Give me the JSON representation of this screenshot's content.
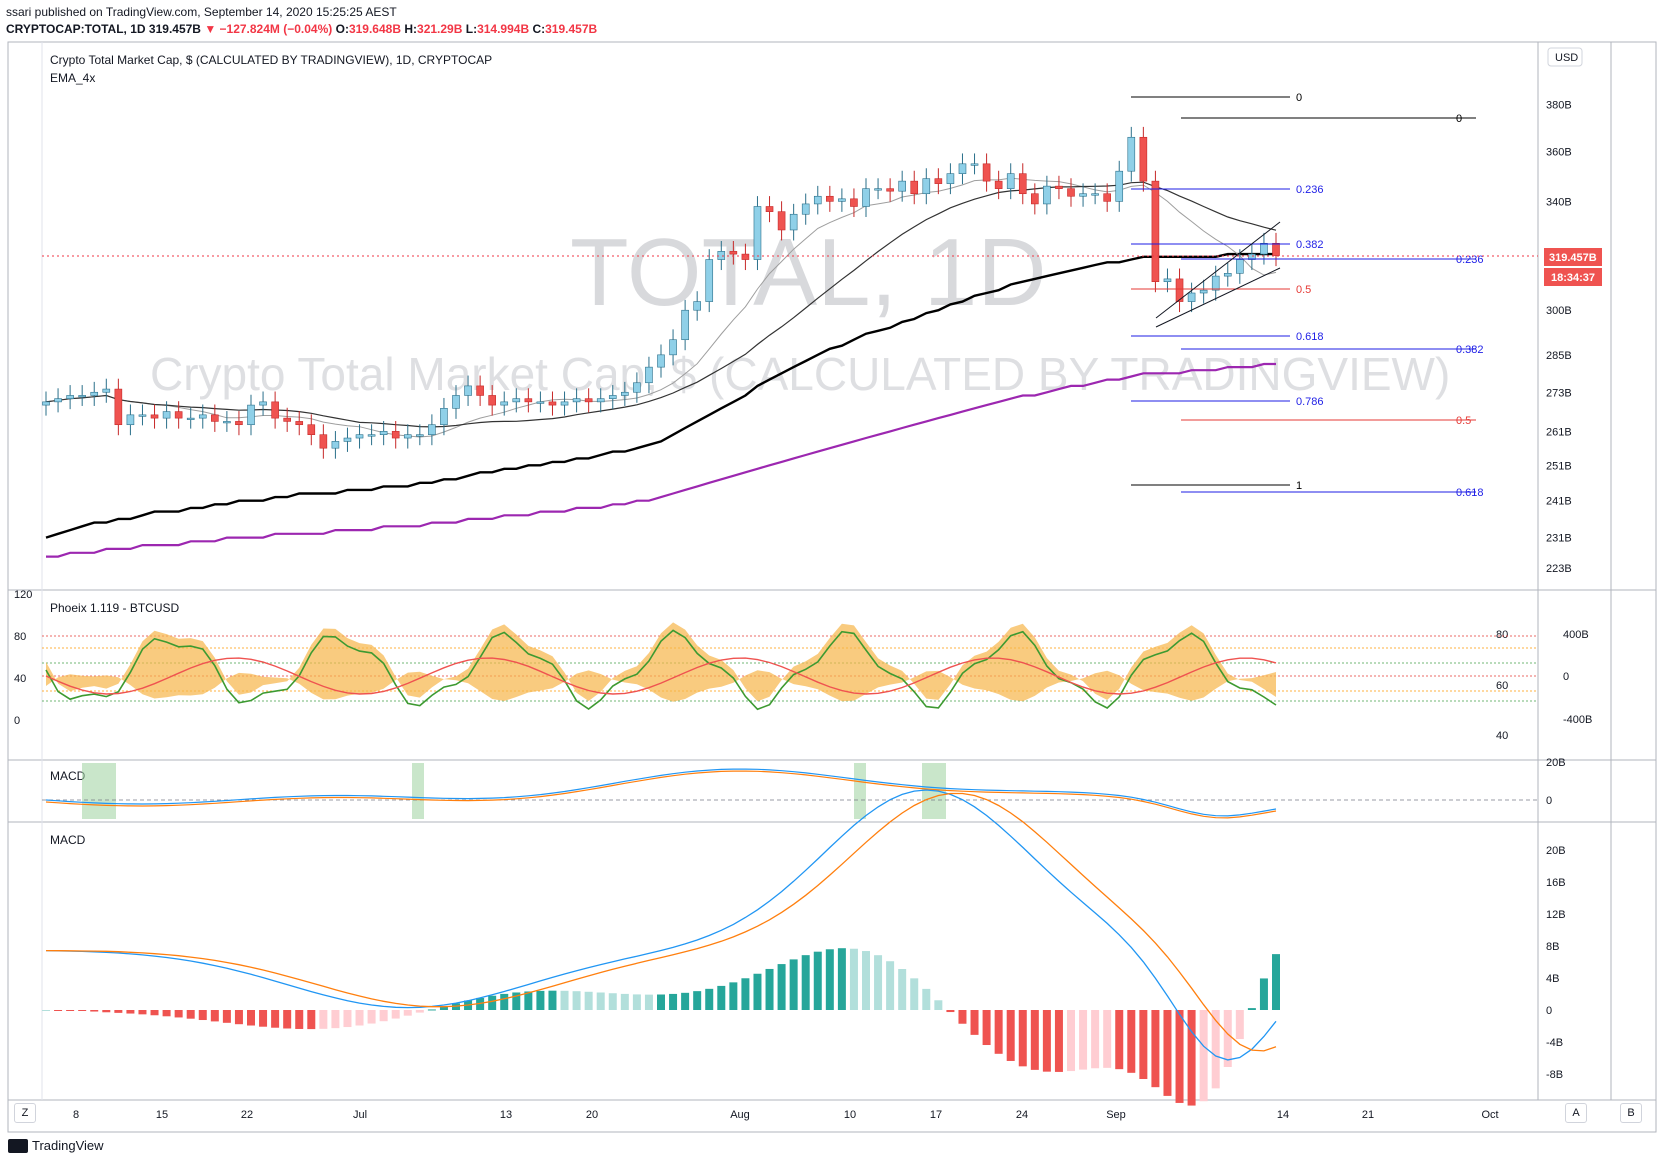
{
  "header": {
    "published": "ssari published on TradingView.com, September 14, 2020 15:25:25 AEST",
    "symbol": "CRYPTOCAP:TOTAL, 1D",
    "last": "319.457B",
    "change": "▼ −127.824M (−0.04%)",
    "o_label": "O:",
    "o_val": "319.648B",
    "h_label": "H:",
    "h_val": "321.29B",
    "l_label": "L:",
    "l_val": "314.994B",
    "c_label": "C:",
    "c_val": "319.457B"
  },
  "main_pane": {
    "legend_title": "Crypto Total Market Cap, $ (CALCULATED BY TRADINGVIEW), 1D, CRYPTOCAP",
    "legend_indicator": "EMA_4x",
    "watermark_big": "TOTAL, 1D",
    "watermark_small": "Crypto Total Market Cap, $ (CALCULATED BY TRADINGVIEW)",
    "currency": "USD",
    "price_badge": "319.457B",
    "time_badge": "18:34:37",
    "y_ticks": [
      "380B",
      "360B",
      "340B",
      "320B",
      "300B",
      "285B",
      "273B",
      "261B",
      "251B",
      "241B",
      "231B",
      "223B"
    ]
  },
  "fib_a": {
    "levels": [
      "0",
      "0.236",
      "0.382",
      "0.5",
      "0.618",
      "0.786",
      "1"
    ]
  },
  "fib_b": {
    "levels": [
      "0",
      "0.236",
      "0.382",
      "0.5",
      "0.618"
    ]
  },
  "phoenix_pane": {
    "legend": "Phoeix 1.119 - BTCUSD",
    "left_ticks": [
      "120",
      "80",
      "40",
      "0"
    ],
    "right_ticks_a": [
      "80",
      "60",
      "40"
    ],
    "right_ticks_b": [
      "400B",
      "0",
      "-400B"
    ]
  },
  "macd_pane_1": {
    "legend": "MACD",
    "right_ticks": [
      "20B",
      "0"
    ]
  },
  "macd_pane_2": {
    "legend": "MACD",
    "right_ticks": [
      "20B",
      "16B",
      "12B",
      "8B",
      "4B",
      "0",
      "-4B",
      "-8B"
    ]
  },
  "x_axis": {
    "labels": [
      "8",
      "15",
      "22",
      "Jul",
      "13",
      "20",
      "Aug",
      "10",
      "17",
      "24",
      "Sep",
      "14",
      "21",
      "Oct"
    ]
  },
  "buttons": {
    "z": "Z",
    "a": "A",
    "b": "B"
  },
  "footer": {
    "brand": "TradingView"
  },
  "colors": {
    "up": "#8fd0e8",
    "down": "#ef5350",
    "ema_black": "#000000",
    "ema_purple": "#9c27b0",
    "macd_blue": "#2196f3",
    "signal_orange": "#ff7f0e"
  },
  "chart_data": {
    "type": "candlestick",
    "title": "Crypto Total Market Cap, $ (CALCULATED BY TRADINGVIEW), 1D, CRYPTOCAP",
    "dates": [
      "Jun 4",
      "Jun 5",
      "Jun 6",
      "Jun 7",
      "Jun 8",
      "Jun 9",
      "Jun 10",
      "Jun 11",
      "Jun 12",
      "Jun 13",
      "Jun 14",
      "Jun 15",
      "Jun 16",
      "Jun 17",
      "Jun 18",
      "Jun 19",
      "Jun 20",
      "Jun 21",
      "Jun 22",
      "Jun 23",
      "Jun 24",
      "Jun 25",
      "Jun 26",
      "Jun 27",
      "Jun 28",
      "Jun 29",
      "Jun 30",
      "Jul 1",
      "Jul 2",
      "Jul 3",
      "Jul 4",
      "Jul 5",
      "Jul 6",
      "Jul 7",
      "Jul 8",
      "Jul 9",
      "Jul 10",
      "Jul 11",
      "Jul 12",
      "Jul 13",
      "Jul 14",
      "Jul 15",
      "Jul 16",
      "Jul 17",
      "Jul 18",
      "Jul 19",
      "Jul 20",
      "Jul 21",
      "Jul 22",
      "Jul 23",
      "Jul 24",
      "Jul 25",
      "Jul 26",
      "Jul 27",
      "Jul 28",
      "Jul 29",
      "Jul 30",
      "Jul 31",
      "Aug 1",
      "Aug 2",
      "Aug 3",
      "Aug 4",
      "Aug 5",
      "Aug 6",
      "Aug 7",
      "Aug 8",
      "Aug 9",
      "Aug 10",
      "Aug 11",
      "Aug 12",
      "Aug 13",
      "Aug 14",
      "Aug 15",
      "Aug 16",
      "Aug 17",
      "Aug 18",
      "Aug 19",
      "Aug 20",
      "Aug 21",
      "Aug 22",
      "Aug 23",
      "Aug 24",
      "Aug 25",
      "Aug 26",
      "Aug 27",
      "Aug 28",
      "Aug 29",
      "Aug 30",
      "Aug 31",
      "Sep 1",
      "Sep 2",
      "Sep 3",
      "Sep 4",
      "Sep 5",
      "Sep 6",
      "Sep 7",
      "Sep 8",
      "Sep 9",
      "Sep 10",
      "Sep 11",
      "Sep 12",
      "Sep 13",
      "Sep 14"
    ],
    "close": [
      270,
      271,
      272,
      272,
      273,
      274,
      263,
      266,
      266,
      265,
      267,
      265,
      265,
      266,
      264,
      264,
      263,
      269,
      270,
      265,
      264,
      263,
      260,
      256,
      258,
      259,
      260,
      260,
      261,
      259,
      260,
      260,
      263,
      268,
      272,
      275,
      272,
      269,
      270,
      271,
      270,
      270,
      269,
      270,
      271,
      270,
      271,
      272,
      273,
      276,
      281,
      285,
      290,
      300,
      303,
      318,
      321,
      320,
      318,
      338,
      336,
      329,
      335,
      339,
      342,
      340,
      341,
      338,
      345,
      345,
      344,
      348,
      343,
      349,
      347,
      351,
      355,
      355,
      348,
      345,
      351,
      343,
      339,
      346,
      345,
      342,
      343,
      343,
      340,
      352,
      366,
      348,
      310,
      311,
      303,
      306,
      307,
      312,
      313,
      318,
      320,
      324,
      319.457
    ],
    "ema_black": [
      231,
      232,
      233,
      234,
      235,
      235,
      236,
      236,
      237,
      238,
      238,
      238,
      239,
      239,
      240,
      240,
      241,
      241,
      241,
      242,
      242,
      243,
      243,
      243,
      243,
      244,
      244,
      244,
      245,
      245,
      245,
      246,
      246,
      247,
      247,
      248,
      249,
      249,
      250,
      250,
      251,
      251,
      252,
      252,
      253,
      253,
      254,
      255,
      255,
      256,
      257,
      258,
      260,
      262,
      264,
      266,
      268,
      270,
      272,
      275,
      277,
      279,
      281,
      283,
      285,
      287,
      288,
      290,
      292,
      293,
      294,
      296,
      297,
      299,
      300,
      302,
      303,
      305,
      306,
      307,
      309,
      310,
      311,
      312,
      313,
      314,
      315,
      316,
      317,
      317,
      318,
      319,
      319,
      319,
      319,
      319,
      319,
      319,
      320,
      320,
      320,
      320,
      320
    ],
    "ema_purple": [
      226,
      226,
      227,
      227,
      227,
      228,
      228,
      228,
      229,
      229,
      229,
      229,
      230,
      230,
      230,
      231,
      231,
      231,
      231,
      232,
      232,
      232,
      232,
      232,
      233,
      233,
      233,
      233,
      234,
      234,
      234,
      234,
      235,
      235,
      235,
      236,
      236,
      236,
      237,
      237,
      237,
      238,
      238,
      238,
      239,
      239,
      239,
      240,
      240,
      241,
      241,
      242,
      243,
      244,
      245,
      246,
      247,
      248,
      249,
      250,
      251,
      252,
      253,
      254,
      255,
      256,
      257,
      258,
      259,
      260,
      261,
      262,
      263,
      264,
      265,
      266,
      267,
      268,
      269,
      270,
      271,
      272,
      272,
      273,
      274,
      275,
      275,
      276,
      277,
      277,
      278,
      279,
      279,
      279,
      279,
      280,
      280,
      280,
      281,
      281,
      281,
      282,
      282
    ],
    "ylim": [
      220,
      400
    ],
    "y_scale": "log"
  }
}
